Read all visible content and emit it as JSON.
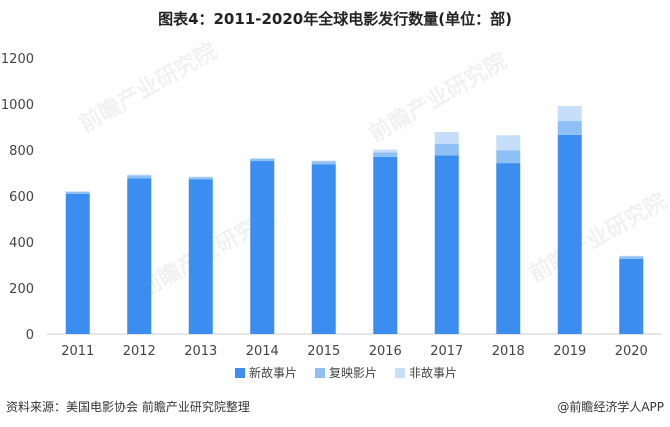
{
  "title": "图表4：2011-2020年全球电影发行数量(单位：部)",
  "source": "资料来源：美国电影协会 前瞻产业研究院整理",
  "credit": "@前瞻经济学人APP",
  "watermark": "前瞻产业研究院",
  "chart_data": {
    "type": "bar",
    "stacked": true,
    "categories": [
      "2011",
      "2012",
      "2013",
      "2014",
      "2015",
      "2016",
      "2017",
      "2018",
      "2019",
      "2020"
    ],
    "series": [
      {
        "name": "新故事片",
        "color": "#3b8ef0",
        "values": [
          610,
          677,
          673,
          752,
          737,
          770,
          776,
          743,
          866,
          327
        ]
      },
      {
        "name": "复映影片",
        "color": "#8ec0f6",
        "values": [
          8,
          13,
          9,
          10,
          14,
          20,
          50,
          56,
          60,
          10
        ]
      },
      {
        "name": "非故事片",
        "color": "#c6defa",
        "values": [
          3,
          3,
          2,
          3,
          3,
          12,
          52,
          65,
          65,
          3
        ]
      }
    ],
    "ylim": [
      0,
      1200
    ],
    "yticks": [
      0,
      200,
      400,
      600,
      800,
      1000,
      1200
    ],
    "grid": false,
    "legend_position": "bottom"
  }
}
